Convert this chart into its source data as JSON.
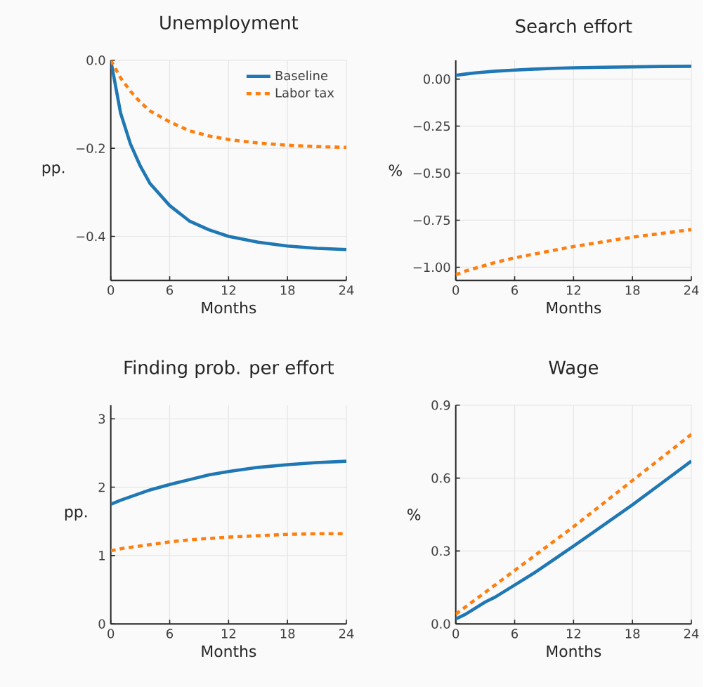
{
  "chart_data": [
    {
      "type": "line",
      "title": "Unemployment",
      "xlabel": "Months",
      "ylabel": "pp.",
      "x": [
        0,
        1,
        2,
        3,
        4,
        6,
        8,
        10,
        12,
        15,
        18,
        21,
        24
      ],
      "xlim": [
        0,
        24
      ],
      "xticks": [
        0,
        6,
        12,
        18,
        24
      ],
      "ylim": [
        -0.5,
        0
      ],
      "yticks": [
        {
          "value": -0.4,
          "label": "−0.4"
        },
        {
          "value": -0.2,
          "label": "−0.2"
        },
        {
          "value": 0,
          "label": "0.0"
        }
      ],
      "grid": true,
      "legend": "top right",
      "series": [
        {
          "name": "Baseline",
          "color": "#1f77b4",
          "line_style": "solid",
          "values": [
            0,
            -0.12,
            -0.19,
            -0.24,
            -0.28,
            -0.33,
            -0.365,
            -0.385,
            -0.4,
            -0.413,
            -0.422,
            -0.427,
            -0.43
          ]
        },
        {
          "name": "Labor tax",
          "color": "#ff7f0e",
          "line_style": "dotted",
          "values": [
            0,
            -0.04,
            -0.07,
            -0.095,
            -0.115,
            -0.14,
            -0.16,
            -0.172,
            -0.18,
            -0.188,
            -0.193,
            -0.196,
            -0.198
          ]
        }
      ]
    },
    {
      "type": "line",
      "title": "Search effort",
      "xlabel": "Months",
      "ylabel": "%",
      "x": [
        0,
        1,
        2,
        3,
        4,
        6,
        8,
        10,
        12,
        15,
        18,
        21,
        24
      ],
      "xlim": [
        0,
        24
      ],
      "xticks": [
        0,
        6,
        12,
        18,
        24
      ],
      "ylim": [
        -1.07,
        0.1
      ],
      "yticks": [
        {
          "value": -1,
          "label": "−1.00"
        },
        {
          "value": -0.75,
          "label": "−0.75"
        },
        {
          "value": -0.5,
          "label": "−0.50"
        },
        {
          "value": -0.25,
          "label": "−0.25"
        },
        {
          "value": 0,
          "label": "0.00"
        }
      ],
      "grid": true,
      "series": [
        {
          "color": "#1f77b4",
          "line_style": "solid",
          "values": [
            0.02,
            0.027,
            0.033,
            0.038,
            0.042,
            0.048,
            0.053,
            0.057,
            0.06,
            0.063,
            0.065,
            0.067,
            0.068
          ]
        },
        {
          "color": "#ff7f0e",
          "line_style": "dotted",
          "values": [
            -1.04,
            -1.02,
            -1.005,
            -0.99,
            -0.975,
            -0.95,
            -0.93,
            -0.91,
            -0.89,
            -0.865,
            -0.84,
            -0.82,
            -0.8
          ]
        }
      ]
    },
    {
      "type": "line",
      "title": "Finding prob. per effort",
      "xlabel": "Months",
      "ylabel": "pp.",
      "x": [
        0,
        1,
        2,
        3,
        4,
        6,
        8,
        10,
        12,
        15,
        18,
        21,
        24
      ],
      "xlim": [
        0,
        24
      ],
      "xticks": [
        0,
        6,
        12,
        18,
        24
      ],
      "ylim": [
        0,
        3.2
      ],
      "yticks": [
        0,
        1,
        2,
        3
      ],
      "grid": true,
      "series": [
        {
          "color": "#1f77b4",
          "line_style": "solid",
          "values": [
            1.75,
            1.81,
            1.86,
            1.91,
            1.96,
            2.04,
            2.11,
            2.18,
            2.23,
            2.29,
            2.33,
            2.36,
            2.38
          ]
        },
        {
          "color": "#ff7f0e",
          "line_style": "dotted",
          "values": [
            1.07,
            1.1,
            1.12,
            1.14,
            1.16,
            1.2,
            1.23,
            1.25,
            1.27,
            1.29,
            1.31,
            1.32,
            1.32
          ]
        }
      ]
    },
    {
      "type": "line",
      "title": "Wage",
      "xlabel": "Months",
      "ylabel": "%",
      "x": [
        0,
        1,
        2,
        3,
        4,
        6,
        8,
        10,
        12,
        15,
        18,
        21,
        24
      ],
      "xlim": [
        0,
        24
      ],
      "xticks": [
        0,
        6,
        12,
        18,
        24
      ],
      "ylim": [
        0,
        0.9
      ],
      "yticks": [
        {
          "value": 0,
          "label": "0.0"
        },
        {
          "value": 0.3,
          "label": "0.3"
        },
        {
          "value": 0.6,
          "label": "0.6"
        },
        {
          "value": 0.9,
          "label": "0.9"
        }
      ],
      "grid": true,
      "series": [
        {
          "color": "#1f77b4",
          "line_style": "solid",
          "values": [
            0.02,
            0.04,
            0.065,
            0.09,
            0.11,
            0.16,
            0.21,
            0.265,
            0.32,
            0.405,
            0.49,
            0.58,
            0.67
          ]
        },
        {
          "color": "#ff7f0e",
          "line_style": "dotted",
          "values": [
            0.04,
            0.07,
            0.1,
            0.13,
            0.16,
            0.22,
            0.28,
            0.34,
            0.4,
            0.495,
            0.59,
            0.685,
            0.78
          ]
        }
      ]
    }
  ]
}
